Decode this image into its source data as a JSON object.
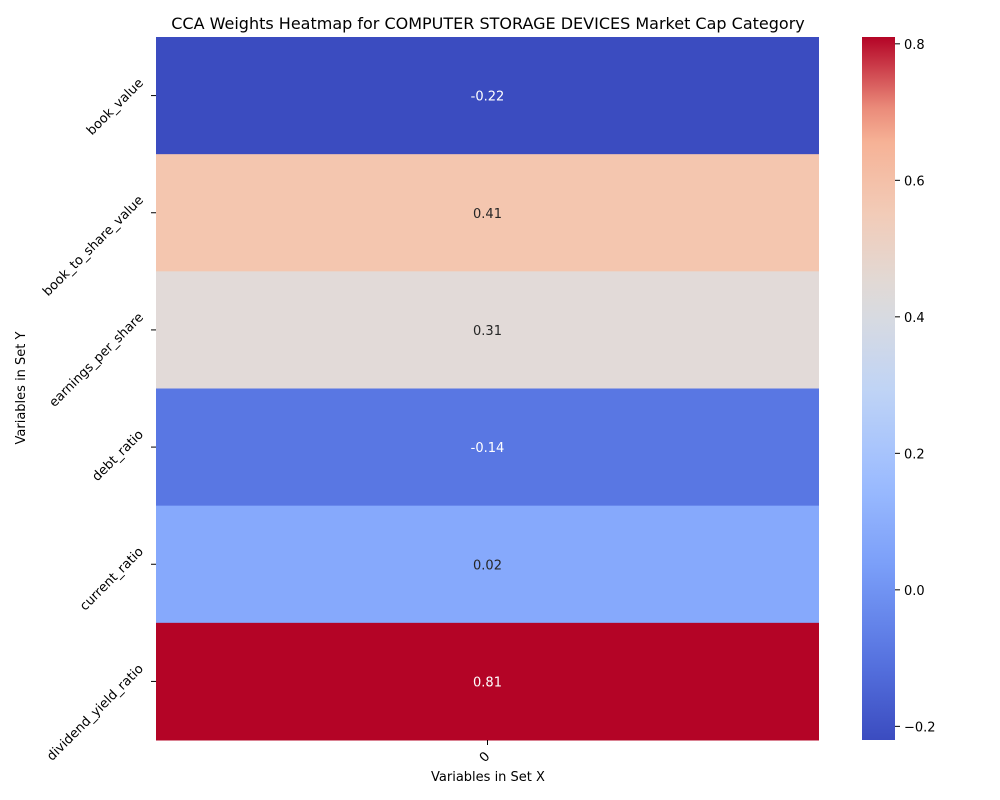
{
  "chart_data": {
    "type": "heatmap",
    "title": "CCA Weights Heatmap for COMPUTER STORAGE DEVICES Market Cap Category",
    "xlabel": "Variables in Set X",
    "ylabel": "Variables in Set Y",
    "x_categories": [
      "0"
    ],
    "y_categories": [
      "book_value",
      "book_to_share_value",
      "earnings_per_share",
      "debt_ratio",
      "current_ratio",
      "dividend_yield_ratio"
    ],
    "values": [
      [
        -0.22
      ],
      [
        0.41
      ],
      [
        0.31
      ],
      [
        -0.14
      ],
      [
        0.02
      ],
      [
        0.81
      ]
    ],
    "value_labels": [
      "-0.22",
      "0.41",
      "0.31",
      "-0.14",
      "0.02",
      "0.81"
    ],
    "colormap": "coolwarm",
    "colors": {
      "book_value": "#3b4cc0",
      "book_to_share_value": "#f4c6af",
      "earnings_per_share": "#e2dad8",
      "debt_ratio": "#5977e3",
      "current_ratio": "#86a9fc",
      "dividend_yield_ratio": "#b40426"
    },
    "colorbar": {
      "min": -0.22,
      "max": 0.81,
      "ticks": [
        -0.2,
        0.0,
        0.2,
        0.4,
        0.6,
        0.8
      ],
      "tick_labels": [
        "−0.2",
        "0.0",
        "0.2",
        "0.4",
        "0.6",
        "0.8"
      ]
    }
  }
}
